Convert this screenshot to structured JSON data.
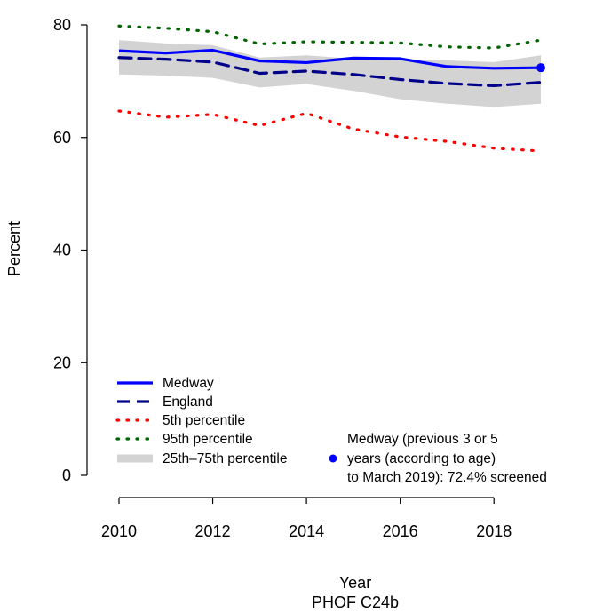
{
  "chart_data": {
    "type": "line",
    "xlabel": "Year",
    "caption": "PHOF C24b",
    "ylabel": "Percent",
    "xlim": [
      2010,
      2019
    ],
    "ylim": [
      0,
      80
    ],
    "x_ticks": [
      "2010",
      "2012",
      "2014",
      "2016",
      "2018"
    ],
    "y_ticks": [
      "0",
      "20",
      "40",
      "60",
      "80"
    ],
    "x": [
      2010,
      2011,
      2012,
      2013,
      2014,
      2015,
      2016,
      2017,
      2018,
      2019
    ],
    "series": [
      {
        "name": "Medway",
        "style": "solid",
        "color": "#0000ff",
        "values": [
          75.4,
          75.0,
          75.5,
          73.6,
          73.3,
          74.1,
          74.0,
          72.6,
          72.3,
          72.4
        ]
      },
      {
        "name": "England",
        "style": "dashed",
        "color": "#00008b",
        "values": [
          74.2,
          73.9,
          73.4,
          71.4,
          71.8,
          71.2,
          70.3,
          69.6,
          69.2,
          69.8
        ]
      },
      {
        "name": "5th percentile",
        "style": "dotted",
        "color": "#ff0000",
        "values": [
          64.7,
          63.6,
          64.1,
          62.1,
          64.3,
          61.5,
          60.1,
          59.3,
          58.1,
          57.6
        ]
      },
      {
        "name": "95th percentile",
        "style": "dotted",
        "color": "#006400",
        "values": [
          79.8,
          79.4,
          78.8,
          76.6,
          77.0,
          76.9,
          76.8,
          76.1,
          75.9,
          77.3
        ]
      }
    ],
    "band": {
      "name": "25th–75th percentile",
      "color": "#d3d3d3",
      "upper": [
        77.3,
        76.7,
        76.4,
        74.2,
        74.6,
        74.0,
        73.9,
        73.7,
        73.4,
        74.6
      ],
      "lower": [
        71.2,
        71.0,
        70.6,
        68.9,
        69.5,
        68.3,
        66.8,
        66.0,
        65.4,
        66.0
      ]
    },
    "marker": {
      "x": 2019,
      "y": 72.4,
      "color": "#0000ff",
      "label_lines": [
        "Medway (previous 3 or 5",
        "years (according to age)",
        "to March 2019): 72.4% screened"
      ]
    },
    "legend": {
      "placement": "bottom-left",
      "items": [
        "Medway",
        "England",
        "5th percentile",
        "95th percentile",
        "25th–75th percentile"
      ]
    },
    "grid": false
  }
}
